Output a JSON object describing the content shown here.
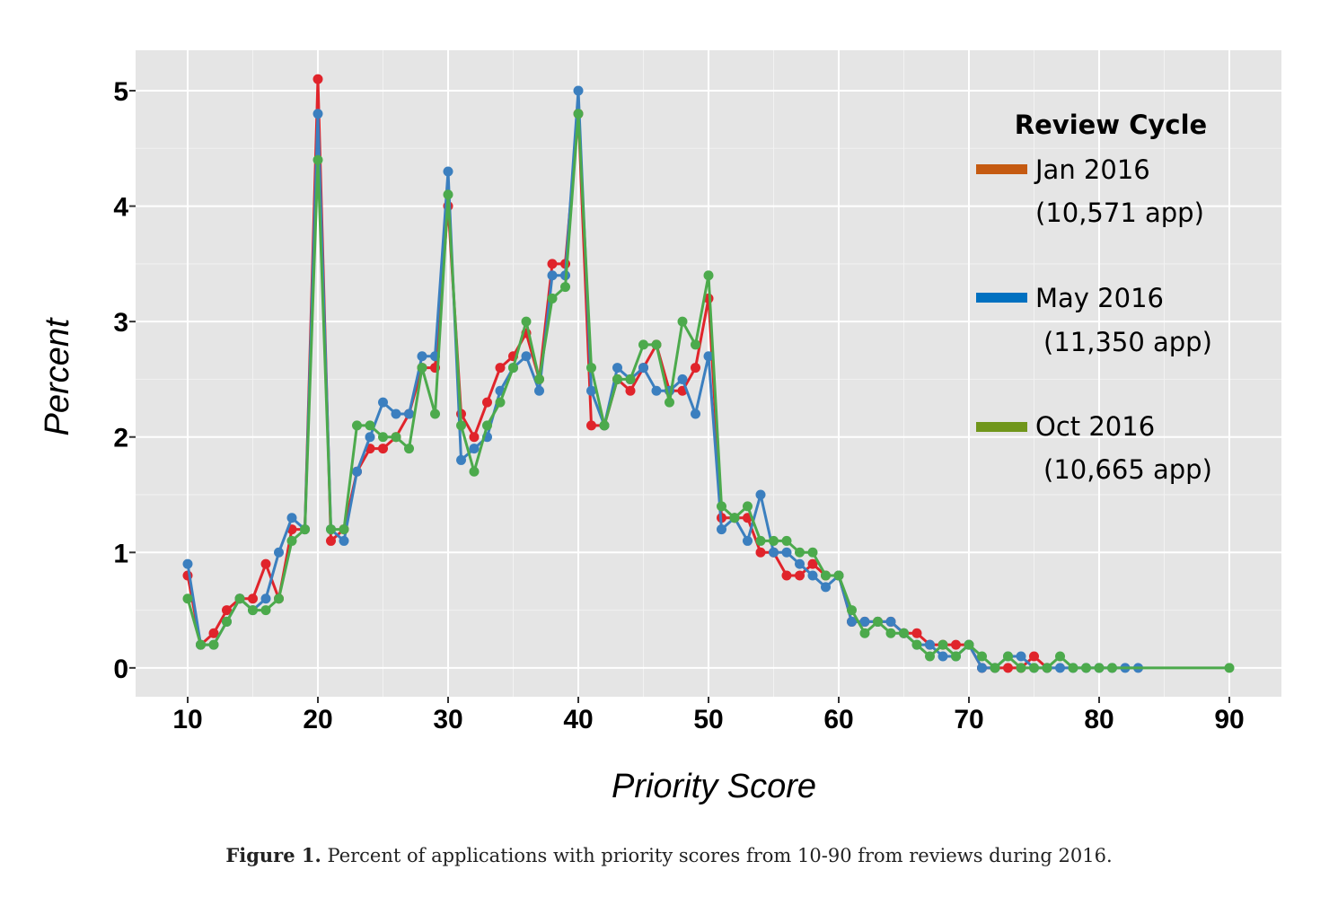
{
  "chart_data": {
    "type": "line",
    "xlabel": "Priority Score",
    "ylabel": "Percent",
    "xlim": [
      6,
      94
    ],
    "ylim": [
      -0.25,
      5.35
    ],
    "x_ticks": [
      10,
      20,
      30,
      40,
      50,
      60,
      70,
      80,
      90
    ],
    "y_ticks": [
      0,
      1,
      2,
      3,
      4,
      5
    ],
    "grid": true,
    "legend_position": "top-right",
    "legend": {
      "title": "Review Cycle",
      "entries": [
        {
          "label": "Jan 2016",
          "sub": "(10,571 app)",
          "color": "#c55a11"
        },
        {
          "label": "May 2016",
          "sub": "(11,350 app)",
          "color": "#0070c0"
        },
        {
          "label": "Oct 2016",
          "sub": "(10,665 app)",
          "color": "#70961b"
        }
      ]
    },
    "series": [
      {
        "name": "Jan 2016",
        "color": "#e0242b",
        "x": [
          10,
          11,
          12,
          13,
          14,
          15,
          16,
          17,
          18,
          19,
          20,
          21,
          22,
          23,
          24,
          25,
          26,
          27,
          28,
          29,
          30,
          31,
          32,
          33,
          34,
          35,
          36,
          37,
          38,
          39,
          40,
          41,
          42,
          43,
          44,
          45,
          46,
          47,
          48,
          49,
          50,
          51,
          52,
          53,
          54,
          55,
          56,
          57,
          58,
          59,
          60,
          61,
          62,
          63,
          64,
          65,
          66,
          67,
          68,
          69,
          70,
          71,
          72,
          73,
          74,
          75,
          76
        ],
        "y": [
          0.8,
          0.2,
          0.3,
          0.5,
          0.6,
          0.6,
          0.9,
          0.6,
          1.2,
          1.2,
          5.1,
          1.1,
          1.2,
          1.7,
          1.9,
          1.9,
          2.0,
          2.2,
          2.6,
          2.6,
          4.0,
          2.2,
          2.0,
          2.3,
          2.6,
          2.7,
          2.9,
          2.5,
          3.5,
          3.5,
          4.8,
          2.1,
          2.1,
          2.5,
          2.4,
          2.6,
          2.8,
          2.4,
          2.4,
          2.6,
          3.2,
          1.3,
          1.3,
          1.3,
          1.0,
          1.0,
          0.8,
          0.8,
          0.9,
          0.8,
          0.8,
          0.4,
          0.4,
          0.4,
          0.4,
          0.3,
          0.3,
          0.2,
          0.2,
          0.2,
          0.2,
          0.0,
          0.0,
          0.0,
          0.0,
          0.1,
          0.0
        ]
      },
      {
        "name": "May 2016",
        "color": "#3b7fbf",
        "x": [
          10,
          11,
          12,
          13,
          14,
          15,
          16,
          17,
          18,
          19,
          20,
          21,
          22,
          23,
          24,
          25,
          26,
          27,
          28,
          29,
          30,
          31,
          32,
          33,
          34,
          35,
          36,
          37,
          38,
          39,
          40,
          41,
          42,
          43,
          44,
          45,
          46,
          47,
          48,
          49,
          50,
          51,
          52,
          53,
          54,
          55,
          56,
          57,
          58,
          59,
          60,
          61,
          62,
          63,
          64,
          65,
          66,
          67,
          68,
          69,
          70,
          71,
          72,
          73,
          74,
          75,
          76,
          77,
          78,
          79,
          80,
          81,
          82,
          83
        ],
        "y": [
          0.9,
          0.2,
          0.2,
          0.4,
          0.6,
          0.5,
          0.6,
          1.0,
          1.3,
          1.2,
          4.8,
          1.2,
          1.1,
          1.7,
          2.0,
          2.3,
          2.2,
          2.2,
          2.7,
          2.7,
          4.3,
          1.8,
          1.9,
          2.0,
          2.4,
          2.6,
          2.7,
          2.4,
          3.4,
          3.4,
          5.0,
          2.4,
          2.1,
          2.6,
          2.5,
          2.6,
          2.4,
          2.4,
          2.5,
          2.2,
          2.7,
          1.2,
          1.3,
          1.1,
          1.5,
          1.0,
          1.0,
          0.9,
          0.8,
          0.7,
          0.8,
          0.4,
          0.4,
          0.4,
          0.4,
          0.3,
          0.2,
          0.2,
          0.1,
          0.1,
          0.2,
          0.0,
          0.0,
          0.1,
          0.1,
          0.0,
          0.0,
          0.0,
          0.0,
          0.0,
          0.0,
          0.0,
          0.0,
          0.0
        ]
      },
      {
        "name": "Oct 2016",
        "color": "#4caa4c",
        "x": [
          10,
          11,
          12,
          13,
          14,
          15,
          16,
          17,
          18,
          19,
          20,
          21,
          22,
          23,
          24,
          25,
          26,
          27,
          28,
          29,
          30,
          31,
          32,
          33,
          34,
          35,
          36,
          37,
          38,
          39,
          40,
          41,
          42,
          43,
          44,
          45,
          46,
          47,
          48,
          49,
          50,
          51,
          52,
          53,
          54,
          55,
          56,
          57,
          58,
          59,
          60,
          61,
          62,
          63,
          64,
          65,
          66,
          67,
          68,
          69,
          70,
          71,
          72,
          73,
          74,
          75,
          76,
          77,
          78,
          79,
          80,
          81,
          90
        ],
        "y": [
          0.6,
          0.2,
          0.2,
          0.4,
          0.6,
          0.5,
          0.5,
          0.6,
          1.1,
          1.2,
          4.4,
          1.2,
          1.2,
          2.1,
          2.1,
          2.0,
          2.0,
          1.9,
          2.6,
          2.2,
          4.1,
          2.1,
          1.7,
          2.1,
          2.3,
          2.6,
          3.0,
          2.5,
          3.2,
          3.3,
          4.8,
          2.6,
          2.1,
          2.5,
          2.5,
          2.8,
          2.8,
          2.3,
          3.0,
          2.8,
          3.4,
          1.4,
          1.3,
          1.4,
          1.1,
          1.1,
          1.1,
          1.0,
          1.0,
          0.8,
          0.8,
          0.5,
          0.3,
          0.4,
          0.3,
          0.3,
          0.2,
          0.1,
          0.2,
          0.1,
          0.2,
          0.1,
          0.0,
          0.1,
          0.0,
          0.0,
          0.0,
          0.1,
          0.0,
          0.0,
          0.0,
          0.0,
          0.0
        ]
      }
    ]
  },
  "caption": {
    "label": "Figure 1.",
    "text": " Percent of applications with priority scores from 10-90 from reviews during 2016."
  }
}
